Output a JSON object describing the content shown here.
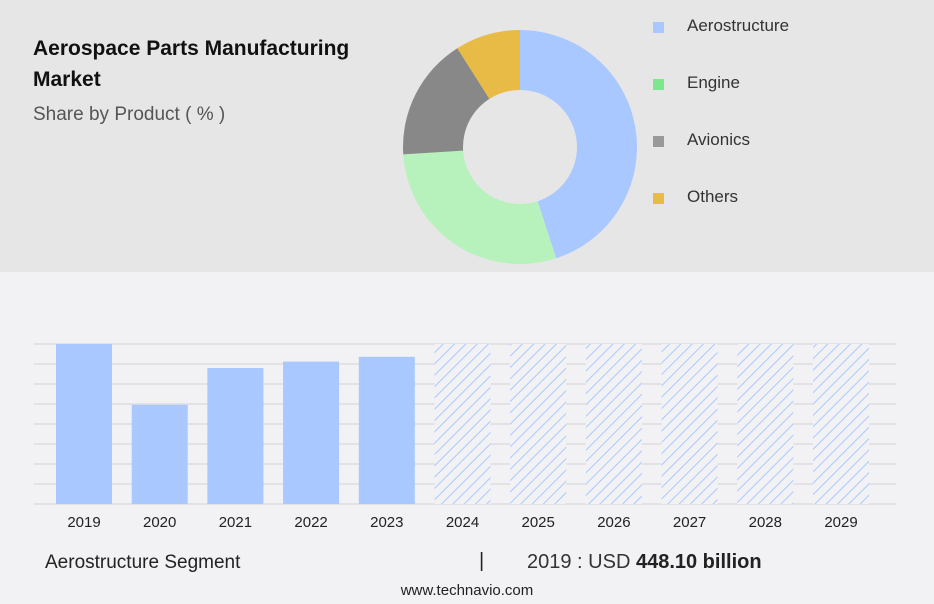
{
  "header": {
    "title": "Aerospace Parts Manufacturing Market",
    "subtitle": "Share by Product ( % )"
  },
  "legend": [
    {
      "label": "Aerostructure",
      "color": "#a9c8ff"
    },
    {
      "label": "Engine",
      "color": "#7ee68c"
    },
    {
      "label": "Avionics",
      "color": "#999999"
    },
    {
      "label": "Others",
      "color": "#e8bb46"
    }
  ],
  "chart_data": [
    {
      "type": "pie",
      "categories": [
        "Aerostructure",
        "Engine",
        "Avionics",
        "Others"
      ],
      "values": [
        45,
        29,
        17,
        9
      ],
      "colors": [
        "#a9c8ff",
        "#b7f2bd",
        "#888888",
        "#e8bb46"
      ],
      "donut": true
    },
    {
      "type": "bar",
      "categories": [
        "2019",
        "2020",
        "2021",
        "2022",
        "2023",
        "2024",
        "2025",
        "2026",
        "2027",
        "2028",
        "2029"
      ],
      "values": [
        100,
        62,
        85,
        89,
        92,
        100,
        100,
        100,
        100,
        100,
        100
      ],
      "forecast_from": "2024",
      "bar_color": "#a9c8ff",
      "forecast_pattern": "diagonal-hatch",
      "grid": true,
      "ylim": [
        0,
        100
      ]
    }
  ],
  "footer": {
    "segment": "Aerostructure Segment",
    "divider": "|",
    "year_label": "2019 : USD",
    "value": "448.10 billion",
    "url": "www.technavio.com"
  }
}
